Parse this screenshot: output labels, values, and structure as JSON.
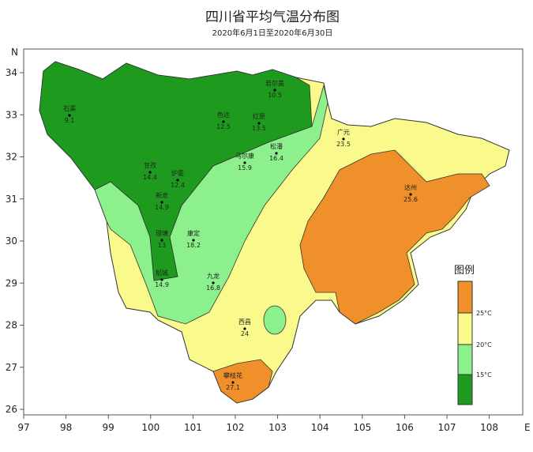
{
  "title": "四川省平均气温分布图",
  "subtitle": "2020年6月1日至2020年6月30日",
  "axes": {
    "xticks": [
      97,
      98,
      99,
      100,
      101,
      102,
      103,
      104,
      105,
      106,
      107,
      108
    ],
    "yticks": [
      26,
      27,
      28,
      29,
      30,
      31,
      32,
      33,
      34
    ],
    "x_unit": "E",
    "y_unit": "N"
  },
  "legend": {
    "title": "图例",
    "labels": [
      "25°C",
      "20°C",
      "15°C"
    ]
  },
  "stations": [
    {
      "name": "石渠",
      "value": "9.1"
    },
    {
      "name": "若尔盖",
      "value": "10.5"
    },
    {
      "name": "色达",
      "value": "12.5"
    },
    {
      "name": "红原",
      "value": "13.5"
    },
    {
      "name": "松潘",
      "value": "16.4"
    },
    {
      "name": "甘孜",
      "value": "14.4"
    },
    {
      "name": "炉霍",
      "value": "12.4"
    },
    {
      "name": "马尔康",
      "value": "15.9"
    },
    {
      "name": "新龙",
      "value": "14.9"
    },
    {
      "name": "理塘",
      "value": "13"
    },
    {
      "name": "康定",
      "value": "18.2"
    },
    {
      "name": "稻城",
      "value": "14.9"
    },
    {
      "name": "九龙",
      "value": "16.8"
    },
    {
      "name": "西昌",
      "value": "24"
    },
    {
      "name": "攀枝花",
      "value": "27.1"
    },
    {
      "name": "广元",
      "value": "23.5"
    },
    {
      "name": "达州",
      "value": "25.6"
    }
  ]
}
